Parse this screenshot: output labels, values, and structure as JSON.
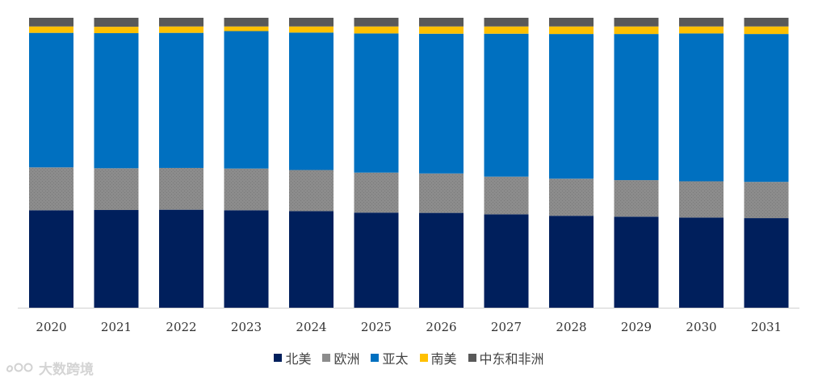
{
  "chart_data": {
    "type": "bar",
    "stacked": true,
    "normalized": true,
    "categories": [
      "2020",
      "2021",
      "2022",
      "2023",
      "2024",
      "2025",
      "2026",
      "2027",
      "2028",
      "2029",
      "2030",
      "2031"
    ],
    "series": [
      {
        "name": "北美",
        "color": "#001f5c",
        "values": [
          33.6,
          33.7,
          33.8,
          33.6,
          33.3,
          32.8,
          32.7,
          32.2,
          31.7,
          31.4,
          31.1,
          30.9
        ]
      },
      {
        "name": "欧洲",
        "color": "#8c8c8c",
        "values": [
          14.8,
          14.4,
          14.4,
          14.4,
          14.2,
          13.8,
          13.6,
          13.0,
          12.8,
          12.6,
          12.5,
          12.5
        ]
      },
      {
        "name": "亚太",
        "color": "#0070c0",
        "values": [
          46.4,
          46.6,
          46.6,
          47.4,
          47.4,
          48.0,
          48.2,
          49.3,
          49.9,
          50.4,
          51.0,
          51.0
        ]
      },
      {
        "name": "南美",
        "color": "#ffc000",
        "values": [
          2.2,
          2.2,
          2.2,
          1.6,
          2.1,
          2.4,
          2.5,
          2.5,
          2.6,
          2.6,
          2.4,
          2.6
        ]
      },
      {
        "name": "中东和非洲",
        "color": "#595959",
        "values": [
          3.0,
          3.1,
          3.0,
          3.0,
          3.0,
          3.0,
          3.0,
          3.0,
          3.0,
          3.0,
          3.0,
          3.0
        ]
      }
    ],
    "ylim": [
      0,
      100
    ],
    "grid": false,
    "legend_position": "bottom"
  },
  "legend": {
    "items": [
      {
        "label": "北美",
        "color": "#001f5c"
      },
      {
        "label": "欧洲",
        "color": "#8c8c8c"
      },
      {
        "label": "亚太",
        "color": "#0070c0"
      },
      {
        "label": "南美",
        "color": "#ffc000"
      },
      {
        "label": "中东和非洲",
        "color": "#595959"
      }
    ]
  },
  "watermark": {
    "text": "大数跨境"
  }
}
